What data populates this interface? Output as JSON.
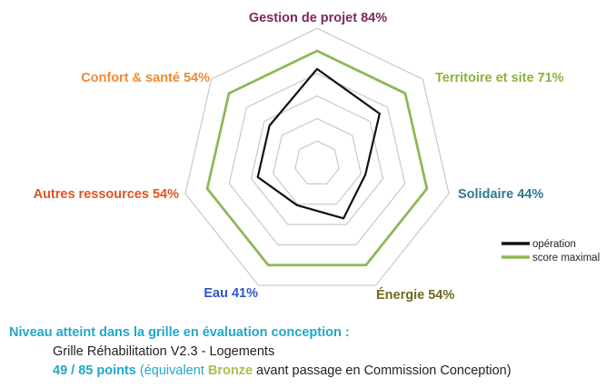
{
  "chart_data": {
    "type": "radar",
    "title": "",
    "axes": [
      {
        "label": "Gestion de projet 84%",
        "color": "#7b2a58"
      },
      {
        "label": "Territoire et site 71%",
        "color": "#8fb33a"
      },
      {
        "label": "Solidaire 44%",
        "color": "#2e7a91"
      },
      {
        "label": "Énergie 54%",
        "color": "#6e6a1f"
      },
      {
        "label": "Eau 41%",
        "color": "#2f56c8"
      },
      {
        "label": "Autres ressources 54%",
        "color": "#e2531f"
      },
      {
        "label": "Confort & santé 54%",
        "color": "#f28a2e"
      }
    ],
    "series": [
      {
        "name": "opération",
        "color": "#111111",
        "values": [
          84,
          71,
          44,
          54,
          41,
          54,
          54
        ]
      },
      {
        "name": "score maximal",
        "color": "#8db858",
        "values": [
          100,
          100,
          100,
          100,
          100,
          100,
          100
        ]
      }
    ],
    "range": [
      0,
      100
    ],
    "grid_levels": [
      20,
      40,
      60,
      80,
      100,
      120
    ],
    "legend": {
      "position": "bottom-right"
    }
  },
  "footer": {
    "title": "Niveau atteint dans la grille en évaluation conception :",
    "grid_name": "Grille Réhabilitation V2.3 - Logements",
    "points": "49 / 85 points",
    "equiv_before": " (équivalent ",
    "bronze": "Bronze",
    "equiv_after": " avant passage en Commission Conception)"
  }
}
